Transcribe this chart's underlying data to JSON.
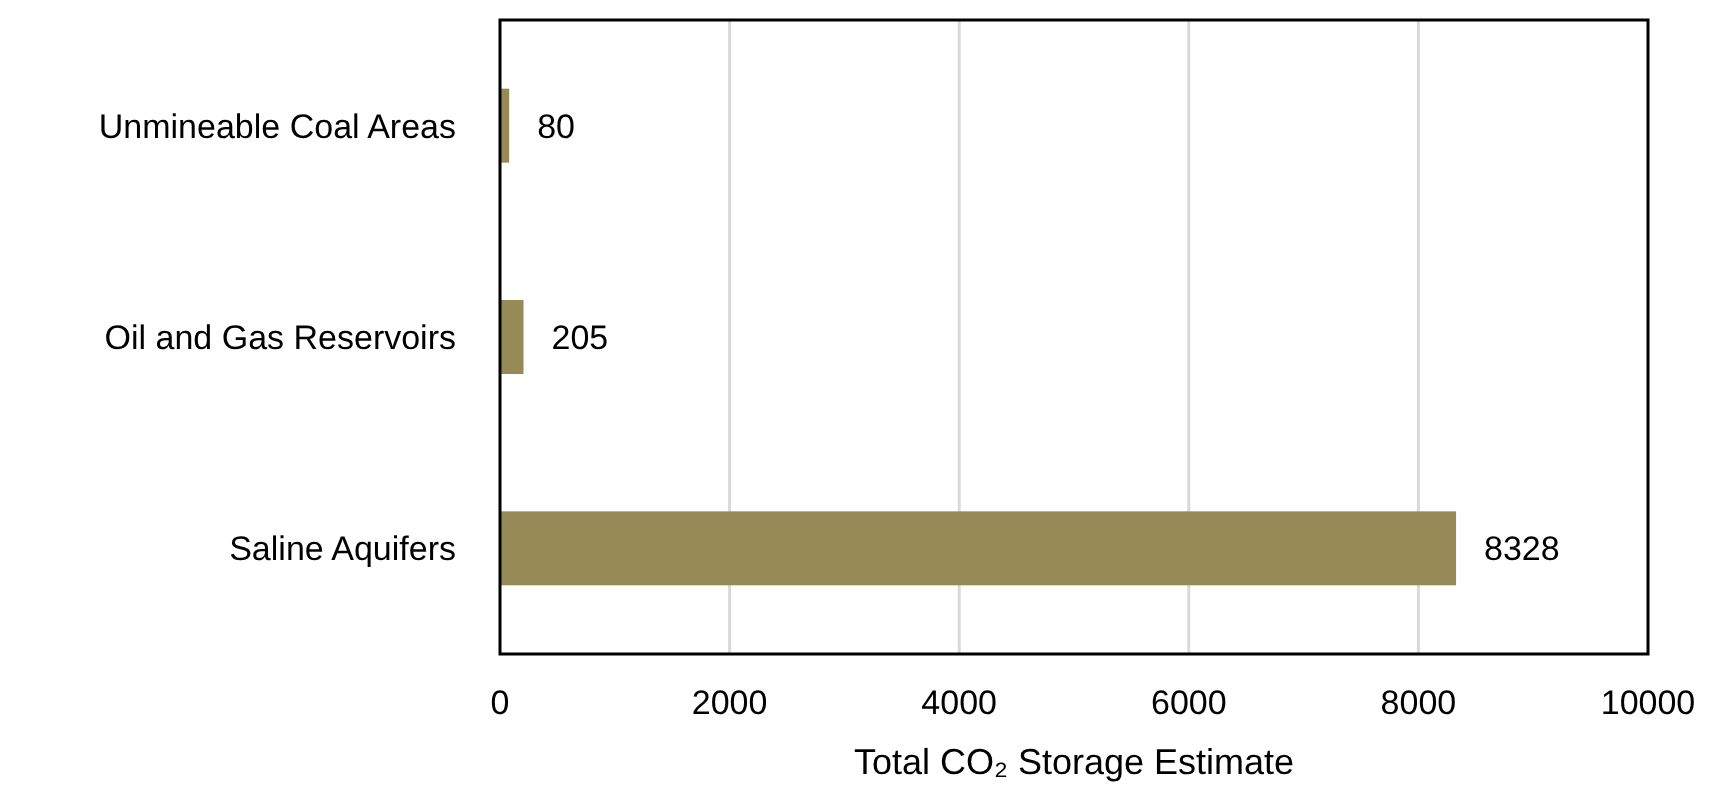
{
  "chart_data": {
    "type": "bar",
    "orientation": "horizontal",
    "xlabel": "Total CO₂ Storage Estimate",
    "categories": [
      "Unmineable Coal Areas",
      "Oil and Gas Reservoirs",
      "Saline Aquifers"
    ],
    "values": [
      80,
      205,
      8328
    ],
    "color": "#968b56",
    "xlim": [
      0,
      10000
    ],
    "xticks": [
      0,
      2000,
      4000,
      6000,
      8000,
      10000
    ],
    "grid": "x",
    "data_labels": true
  }
}
